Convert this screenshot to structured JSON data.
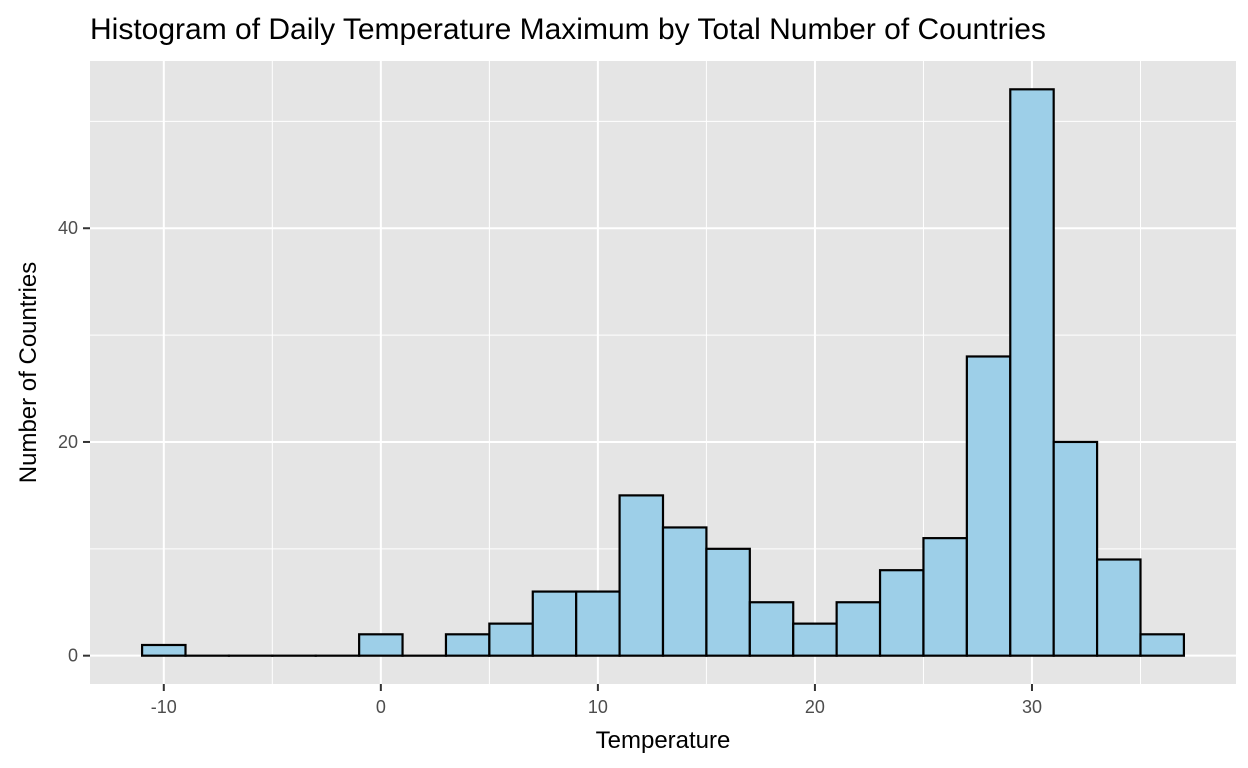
{
  "chart_data": {
    "type": "bar",
    "title": "Histogram of Daily Temperature Maximum by Total Number of Countries",
    "xlabel": "Temperature",
    "ylabel": "Number of Countries",
    "bin_width": 2,
    "bins": [
      {
        "start": -11,
        "end": -9,
        "count": 1
      },
      {
        "start": -9,
        "end": -7,
        "count": 0
      },
      {
        "start": -7,
        "end": -5,
        "count": 0
      },
      {
        "start": -5,
        "end": -3,
        "count": 0
      },
      {
        "start": -3,
        "end": -1,
        "count": 0
      },
      {
        "start": -1,
        "end": 1,
        "count": 2
      },
      {
        "start": 1,
        "end": 3,
        "count": 0
      },
      {
        "start": 3,
        "end": 5,
        "count": 2
      },
      {
        "start": 5,
        "end": 7,
        "count": 3
      },
      {
        "start": 7,
        "end": 9,
        "count": 6
      },
      {
        "start": 9,
        "end": 11,
        "count": 6
      },
      {
        "start": 11,
        "end": 13,
        "count": 15
      },
      {
        "start": 13,
        "end": 15,
        "count": 12
      },
      {
        "start": 15,
        "end": 17,
        "count": 10
      },
      {
        "start": 17,
        "end": 19,
        "count": 5
      },
      {
        "start": 19,
        "end": 21,
        "count": 3
      },
      {
        "start": 21,
        "end": 23,
        "count": 5
      },
      {
        "start": 23,
        "end": 25,
        "count": 8
      },
      {
        "start": 25,
        "end": 27,
        "count": 11
      },
      {
        "start": 27,
        "end": 29,
        "count": 28
      },
      {
        "start": 29,
        "end": 31,
        "count": 53
      },
      {
        "start": 31,
        "end": 33,
        "count": 20
      },
      {
        "start": 33,
        "end": 35,
        "count": 9
      },
      {
        "start": 35,
        "end": 37,
        "count": 2
      }
    ],
    "xlim": [
      -13.4,
      39.4
    ],
    "ylim": [
      -2.65,
      55.65
    ],
    "x_major_ticks": [
      -10,
      0,
      10,
      20,
      30
    ],
    "x_tick_labels": [
      "-10",
      "0",
      "10",
      "20",
      "30"
    ],
    "x_minor_grid": [
      -5,
      5,
      15,
      25,
      35
    ],
    "y_major_ticks": [
      0,
      20,
      40
    ],
    "y_tick_labels": [
      "0",
      "20",
      "40"
    ],
    "y_minor_grid": [
      10,
      30,
      50
    ],
    "grid": true,
    "legend": "none",
    "colors": {
      "panel_background": "#e5e5e5",
      "grid_line": "#ffffff",
      "bar_fill": "#9dcfe8",
      "bar_outline": "#000000",
      "tick_mark": "#333333",
      "tick_label": "#4d4d4d"
    }
  }
}
